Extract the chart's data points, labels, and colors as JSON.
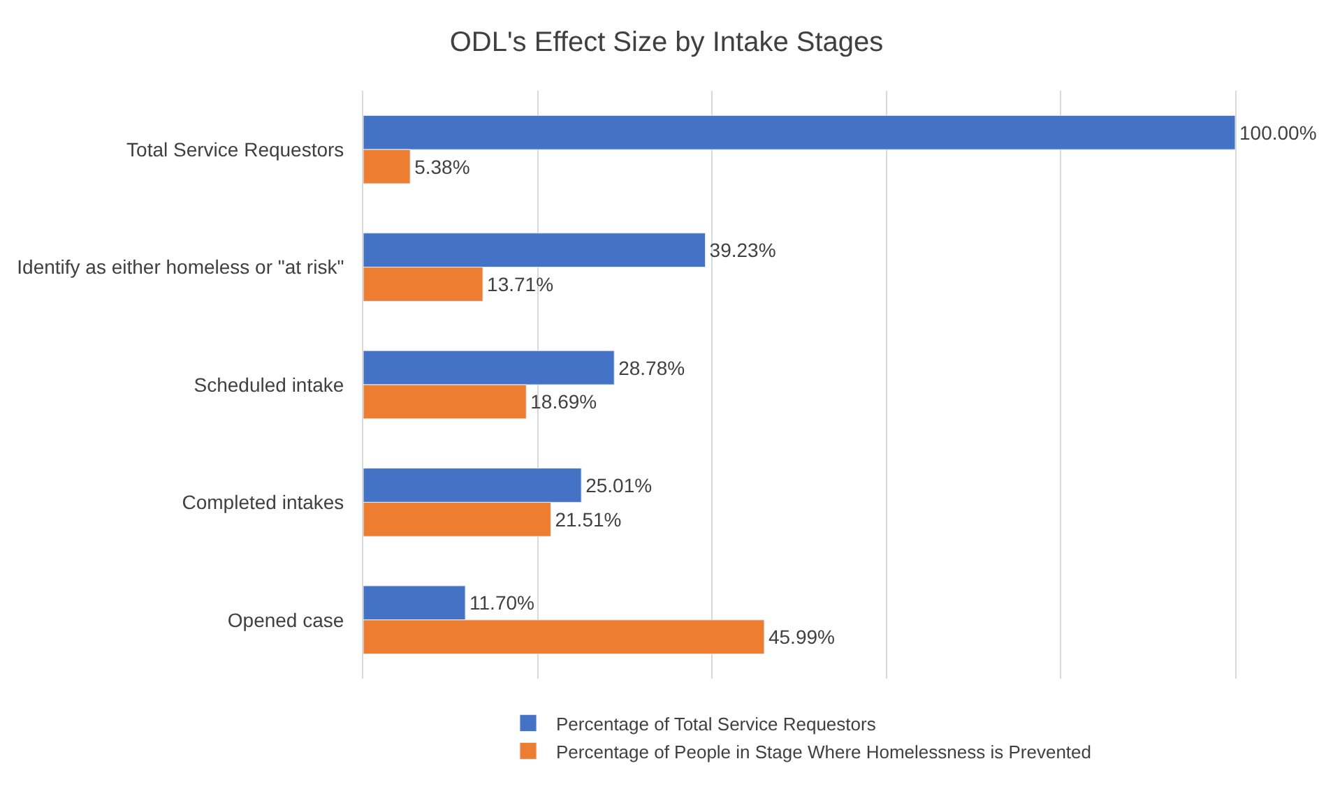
{
  "chart_data": {
    "type": "bar",
    "orientation": "horizontal",
    "title": "ODL's Effect Size by Intake Stages",
    "categories": [
      "Total Service Requestors",
      "Identify as either homeless or \"at risk\"",
      "Scheduled intake",
      "Completed intakes",
      "Opened case"
    ],
    "series": [
      {
        "name": "Percentage of Total Service Requestors",
        "color": "#4472c4",
        "values": [
          100,
          39.23,
          28.78,
          25.01,
          11.7
        ],
        "value_labels": [
          "100.00%",
          "39.23%",
          "28.78%",
          "25.01%",
          "11.70%"
        ]
      },
      {
        "name": "Percentage of People in Stage Where Homelessness is Prevented",
        "color": "#ed7d31",
        "values": [
          5.38,
          13.71,
          18.69,
          21.51,
          45.99
        ],
        "value_labels": [
          "5.38%",
          "13.71%",
          "18.69%",
          "21.51%",
          "45.99%"
        ]
      }
    ],
    "xlim": [
      0,
      100
    ],
    "xticks": [
      {
        "value": 0,
        "label": null
      },
      {
        "value": 20,
        "label": null
      },
      {
        "value": 40,
        "label": null
      },
      {
        "value": 60,
        "label": null
      },
      {
        "value": 80,
        "label": null
      },
      {
        "value": 100,
        "label": null
      }
    ],
    "grid": "x",
    "legend": "bottom",
    "tick_labels": "y"
  }
}
